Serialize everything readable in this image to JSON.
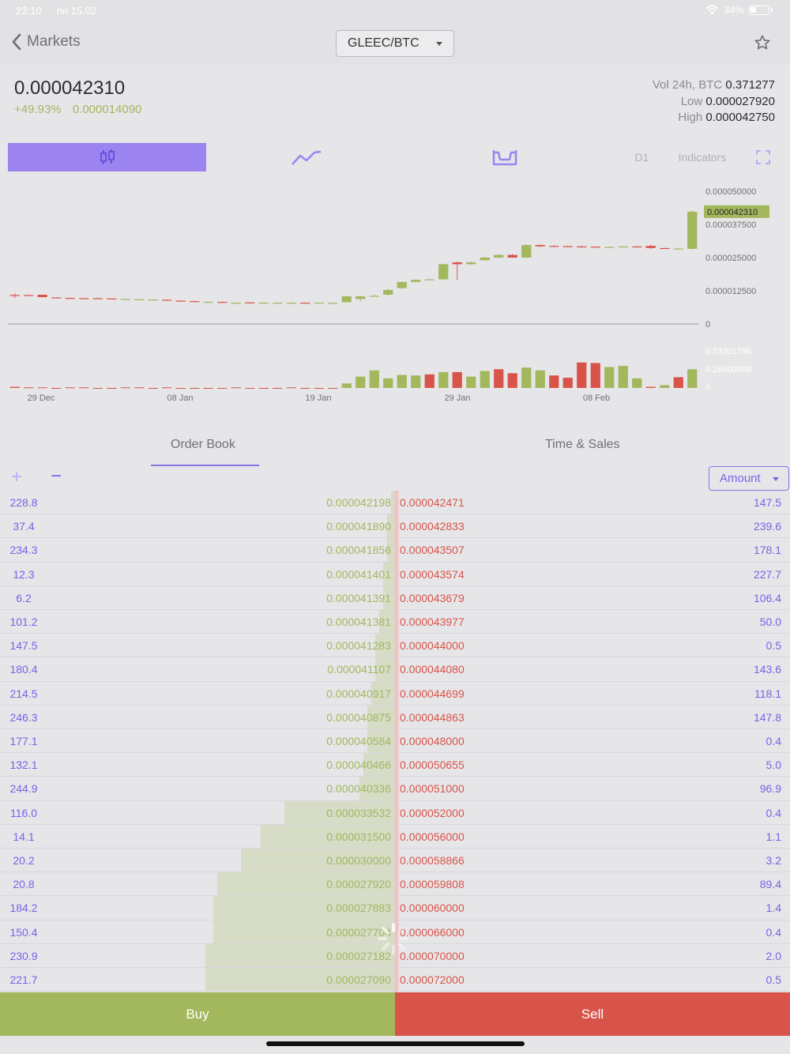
{
  "status": {
    "time": "23:10",
    "date": "пн 15.02",
    "battery": "34%"
  },
  "header": {
    "back_label": "Markets",
    "pair": "GLEEC/BTC"
  },
  "ticker": {
    "last_price": "0.000042310",
    "change_pct": "+49.93%",
    "change_abs": "0.000014090",
    "vol_label": "Vol 24h, BTC",
    "vol_value": "0.371277",
    "low_label": "Low",
    "low_value": "0.000027920",
    "high_label": "High",
    "high_value": "0.000042750"
  },
  "toolbar": {
    "timeframe": "D1",
    "indicators": "Indicators"
  },
  "chart_data": {
    "type": "candlestick",
    "y_ticks": [
      "0.000050000",
      "0.000037500",
      "0.000025000",
      "0.000012500",
      "0"
    ],
    "ylim": [
      0,
      5e-05
    ],
    "current_price_label": "0.000042310",
    "current_price": 4.231e-05,
    "x_ticks": [
      "29 Dec",
      "08 Jan",
      "19 Jan",
      "29 Jan",
      "08 Feb"
    ],
    "volume_ticks": [
      "0.53201796",
      "0.26600898",
      "0"
    ],
    "volume_max": 0.6,
    "candles": [
      {
        "o": 1.09e-05,
        "c": 1.08e-05,
        "h": 1.15e-05,
        "l": 9.8e-06
      },
      {
        "o": 1.09e-05,
        "c": 1.08e-05,
        "h": 1.1e-05,
        "l": 1.07e-05
      },
      {
        "o": 1.1e-05,
        "c": 1.01e-05,
        "h": 1.1e-05,
        "l": 1e-05
      },
      {
        "o": 1e-05,
        "c": 9.9e-06,
        "h": 1.01e-05,
        "l": 9.8e-06
      },
      {
        "o": 9.8e-06,
        "c": 9.7e-06,
        "h": 9.9e-06,
        "l": 9.6e-06
      },
      {
        "o": 9.7e-06,
        "c": 9.6e-06,
        "h": 9.8e-06,
        "l": 9.5e-06
      },
      {
        "o": 9.7e-06,
        "c": 9.6e-06,
        "h": 9.8e-06,
        "l": 9.5e-06
      },
      {
        "o": 9.6e-06,
        "c": 9.5e-06,
        "h": 9.7e-06,
        "l": 9.4e-06
      },
      {
        "o": 9.4e-06,
        "c": 9.4e-06,
        "h": 9.5e-06,
        "l": 9.3e-06
      },
      {
        "o": 9.3e-06,
        "c": 9.3e-06,
        "h": 9.4e-06,
        "l": 9.2e-06
      },
      {
        "o": 9.2e-06,
        "c": 9.2e-06,
        "h": 9.3e-06,
        "l": 9.1e-06
      },
      {
        "o": 9.1e-06,
        "c": 8.8e-06,
        "h": 9.2e-06,
        "l": 8.7e-06
      },
      {
        "o": 8.8e-06,
        "c": 8.5e-06,
        "h": 8.9e-06,
        "l": 8.3e-06
      },
      {
        "o": 8.6e-06,
        "c": 8.4e-06,
        "h": 8.7e-06,
        "l": 8.3e-06
      },
      {
        "o": 8.3e-06,
        "c": 8.3e-06,
        "h": 8.4e-06,
        "l": 8.2e-06
      },
      {
        "o": 8.3e-06,
        "c": 8.1e-06,
        "h": 8.4e-06,
        "l": 8e-06
      },
      {
        "o": 8e-06,
        "c": 8e-06,
        "h": 8.1e-06,
        "l": 7.9e-06
      },
      {
        "o": 8.1e-06,
        "c": 8e-06,
        "h": 8.2e-06,
        "l": 7.9e-06
      },
      {
        "o": 7.9e-06,
        "c": 8e-06,
        "h": 8.1e-06,
        "l": 7.8e-06
      },
      {
        "o": 7.9e-06,
        "c": 8e-06,
        "h": 8.1e-06,
        "l": 7.8e-06
      },
      {
        "o": 8e-06,
        "c": 8e-06,
        "h": 8.2e-06,
        "l": 7.7e-06
      },
      {
        "o": 8e-06,
        "c": 7.9e-06,
        "h": 8.1e-06,
        "l": 7.7e-06
      },
      {
        "o": 7.9e-06,
        "c": 8e-06,
        "h": 8.1e-06,
        "l": 7.8e-06
      },
      {
        "o": 7.9e-06,
        "c": 7.9e-06,
        "h": 8e-06,
        "l": 7.8e-06
      },
      {
        "o": 8.2e-06,
        "c": 1.04e-05,
        "h": 1.06e-05,
        "l": 8.1e-06
      },
      {
        "o": 9.4e-06,
        "c": 1.04e-05,
        "h": 1.06e-05,
        "l": 8.5e-06
      },
      {
        "o": 1.05e-05,
        "c": 1.06e-05,
        "h": 1.12e-05,
        "l": 1.02e-05
      },
      {
        "o": 1.1e-05,
        "c": 1.28e-05,
        "h": 1.32e-05,
        "l": 1.07e-05
      },
      {
        "o": 1.35e-05,
        "c": 1.58e-05,
        "h": 1.6e-05,
        "l": 1.32e-05
      },
      {
        "o": 1.58e-05,
        "c": 1.66e-05,
        "h": 1.68e-05,
        "l": 1.56e-05
      },
      {
        "o": 1.66e-05,
        "c": 1.68e-05,
        "h": 1.69e-05,
        "l": 1.64e-05
      },
      {
        "o": 1.68e-05,
        "c": 2.25e-05,
        "h": 2.28e-05,
        "l": 1.65e-05
      },
      {
        "o": 2.32e-05,
        "c": 2.25e-05,
        "h": 2.35e-05,
        "l": 1.66e-05
      },
      {
        "o": 2.25e-05,
        "c": 2.32e-05,
        "h": 2.36e-05,
        "l": 2.22e-05
      },
      {
        "o": 2.4e-05,
        "c": 2.5e-05,
        "h": 2.52e-05,
        "l": 2.38e-05
      },
      {
        "o": 2.5e-05,
        "c": 2.6e-05,
        "h": 2.62e-05,
        "l": 2.48e-05
      },
      {
        "o": 2.6e-05,
        "c": 2.5e-05,
        "h": 2.63e-05,
        "l": 2.48e-05
      },
      {
        "o": 2.5e-05,
        "c": 2.97e-05,
        "h": 2.99e-05,
        "l": 2.48e-05
      },
      {
        "o": 2.97e-05,
        "c": 2.92e-05,
        "h": 2.99e-05,
        "l": 2.9e-05
      },
      {
        "o": 2.94e-05,
        "c": 2.92e-05,
        "h": 2.96e-05,
        "l": 2.9e-05
      },
      {
        "o": 2.93e-05,
        "c": 2.91e-05,
        "h": 2.95e-05,
        "l": 2.89e-05
      },
      {
        "o": 2.92e-05,
        "c": 2.9e-05,
        "h": 2.95e-05,
        "l": 2.88e-05
      },
      {
        "o": 2.91e-05,
        "c": 2.9e-05,
        "h": 2.92e-05,
        "l": 2.89e-05
      },
      {
        "o": 2.9e-05,
        "c": 2.9e-05,
        "h": 2.92e-05,
        "l": 2.88e-05
      },
      {
        "o": 2.9e-05,
        "c": 2.92e-05,
        "h": 2.93e-05,
        "l": 2.88e-05
      },
      {
        "o": 2.92e-05,
        "c": 2.9e-05,
        "h": 2.94e-05,
        "l": 2.88e-05
      },
      {
        "o": 2.94e-05,
        "c": 2.86e-05,
        "h": 2.98e-05,
        "l": 2.83e-05
      },
      {
        "o": 2.86e-05,
        "c": 2.85e-05,
        "h": 2.87e-05,
        "l": 2.84e-05
      },
      {
        "o": 2.83e-05,
        "c": 2.84e-05,
        "h": 2.86e-05,
        "l": 2.82e-05
      },
      {
        "o": 2.83e-05,
        "c": 4.23e-05,
        "h": 4.28e-05,
        "l": 2.8e-05
      }
    ],
    "volumes": [
      0.02,
      0.01,
      0.01,
      0.0,
      0.01,
      0.01,
      0.0,
      0.0,
      0.01,
      0.01,
      0.0,
      0.01,
      0.0,
      0.0,
      0.0,
      0.0,
      0.01,
      0.0,
      0.0,
      0.0,
      0.01,
      0.0,
      0.0,
      0.0,
      0.08,
      0.2,
      0.31,
      0.17,
      0.23,
      0.22,
      0.24,
      0.28,
      0.28,
      0.2,
      0.3,
      0.33,
      0.26,
      0.36,
      0.31,
      0.22,
      0.18,
      0.45,
      0.44,
      0.37,
      0.39,
      0.17,
      0.02,
      0.05,
      0.19,
      0.33
    ],
    "volume_up": [
      false,
      false,
      false,
      false,
      false,
      false,
      false,
      false,
      false,
      false,
      false,
      false,
      false,
      false,
      false,
      false,
      false,
      false,
      false,
      false,
      false,
      false,
      false,
      false,
      true,
      true,
      true,
      true,
      true,
      true,
      false,
      true,
      false,
      true,
      true,
      false,
      false,
      true,
      true,
      false,
      false,
      false,
      false,
      true,
      true,
      true,
      false,
      true,
      false,
      true
    ]
  },
  "tabs": {
    "order_book": "Order Book",
    "time_sales": "Time & Sales"
  },
  "order_book": {
    "plus": "+",
    "minus": "−",
    "amount_label": "Amount",
    "rows": [
      {
        "bid_amt": "228.8",
        "bid_price": "0.000042198",
        "ask_price": "0.000042471",
        "ask_amt": "147.5",
        "bid_depth": 0.01,
        "ask_depth": 0.01
      },
      {
        "bid_amt": "37.4",
        "bid_price": "0.000041890",
        "ask_price": "0.000042833",
        "ask_amt": "239.6",
        "bid_depth": 0.02,
        "ask_depth": 0.01
      },
      {
        "bid_amt": "234.3",
        "bid_price": "0.000041856",
        "ask_price": "0.000043507",
        "ask_amt": "178.1",
        "bid_depth": 0.02,
        "ask_depth": 0.01
      },
      {
        "bid_amt": "12.3",
        "bid_price": "0.000041401",
        "ask_price": "0.000043574",
        "ask_amt": "227.7",
        "bid_depth": 0.03,
        "ask_depth": 0.01
      },
      {
        "bid_amt": "6.2",
        "bid_price": "0.000041391",
        "ask_price": "0.000043679",
        "ask_amt": "106.4",
        "bid_depth": 0.03,
        "ask_depth": 0.01
      },
      {
        "bid_amt": "101.2",
        "bid_price": "0.000041381",
        "ask_price": "0.000043977",
        "ask_amt": "50.0",
        "bid_depth": 0.04,
        "ask_depth": 0.01
      },
      {
        "bid_amt": "147.5",
        "bid_price": "0.000041283",
        "ask_price": "0.000044000",
        "ask_amt": "0.5",
        "bid_depth": 0.05,
        "ask_depth": 0.01
      },
      {
        "bid_amt": "180.4",
        "bid_price": "0.000041107",
        "ask_price": "0.000044080",
        "ask_amt": "143.6",
        "bid_depth": 0.05,
        "ask_depth": 0.01
      },
      {
        "bid_amt": "214.5",
        "bid_price": "0.000040917",
        "ask_price": "0.000044699",
        "ask_amt": "118.1",
        "bid_depth": 0.06,
        "ask_depth": 0.01
      },
      {
        "bid_amt": "246.3",
        "bid_price": "0.000040875",
        "ask_price": "0.000044863",
        "ask_amt": "147.8",
        "bid_depth": 0.07,
        "ask_depth": 0.01
      },
      {
        "bid_amt": "177.1",
        "bid_price": "0.000040584",
        "ask_price": "0.000048000",
        "ask_amt": "0.4",
        "bid_depth": 0.07,
        "ask_depth": 0.01
      },
      {
        "bid_amt": "132.1",
        "bid_price": "0.000040466",
        "ask_price": "0.000050655",
        "ask_amt": "5.0",
        "bid_depth": 0.08,
        "ask_depth": 0.01
      },
      {
        "bid_amt": "244.9",
        "bid_price": "0.000040336",
        "ask_price": "0.000051000",
        "ask_amt": "96.9",
        "bid_depth": 0.09,
        "ask_depth": 0.01
      },
      {
        "bid_amt": "116.0",
        "bid_price": "0.000033532",
        "ask_price": "0.000052000",
        "ask_amt": "0.4",
        "bid_depth": 0.28,
        "ask_depth": 0.01
      },
      {
        "bid_amt": "14.1",
        "bid_price": "0.000031500",
        "ask_price": "0.000056000",
        "ask_amt": "1.1",
        "bid_depth": 0.34,
        "ask_depth": 0.01
      },
      {
        "bid_amt": "20.2",
        "bid_price": "0.000030000",
        "ask_price": "0.000058866",
        "ask_amt": "3.2",
        "bid_depth": 0.39,
        "ask_depth": 0.01
      },
      {
        "bid_amt": "20.8",
        "bid_price": "0.000027920",
        "ask_price": "0.000059808",
        "ask_amt": "89.4",
        "bid_depth": 0.45,
        "ask_depth": 0.01
      },
      {
        "bid_amt": "184.2",
        "bid_price": "0.000027883",
        "ask_price": "0.000060000",
        "ask_amt": "1.4",
        "bid_depth": 0.46,
        "ask_depth": 0.01
      },
      {
        "bid_amt": "150.4",
        "bid_price": "0.000027704",
        "ask_price": "0.000066000",
        "ask_amt": "0.4",
        "bid_depth": 0.46,
        "ask_depth": 0.01
      },
      {
        "bid_amt": "230.9",
        "bid_price": "0.000027182",
        "ask_price": "0.000070000",
        "ask_amt": "2.0",
        "bid_depth": 0.48,
        "ask_depth": 0.01
      },
      {
        "bid_amt": "221.7",
        "bid_price": "0.000027090",
        "ask_price": "0.000072000",
        "ask_amt": "0.5",
        "bid_depth": 0.48,
        "ask_depth": 0.01
      }
    ]
  },
  "actions": {
    "buy": "Buy",
    "sell": "Sell"
  },
  "colors": {
    "accent": "#8b73e6",
    "up": "#a3b75d",
    "down": "#d8544a",
    "background": "#e6e6e9"
  }
}
